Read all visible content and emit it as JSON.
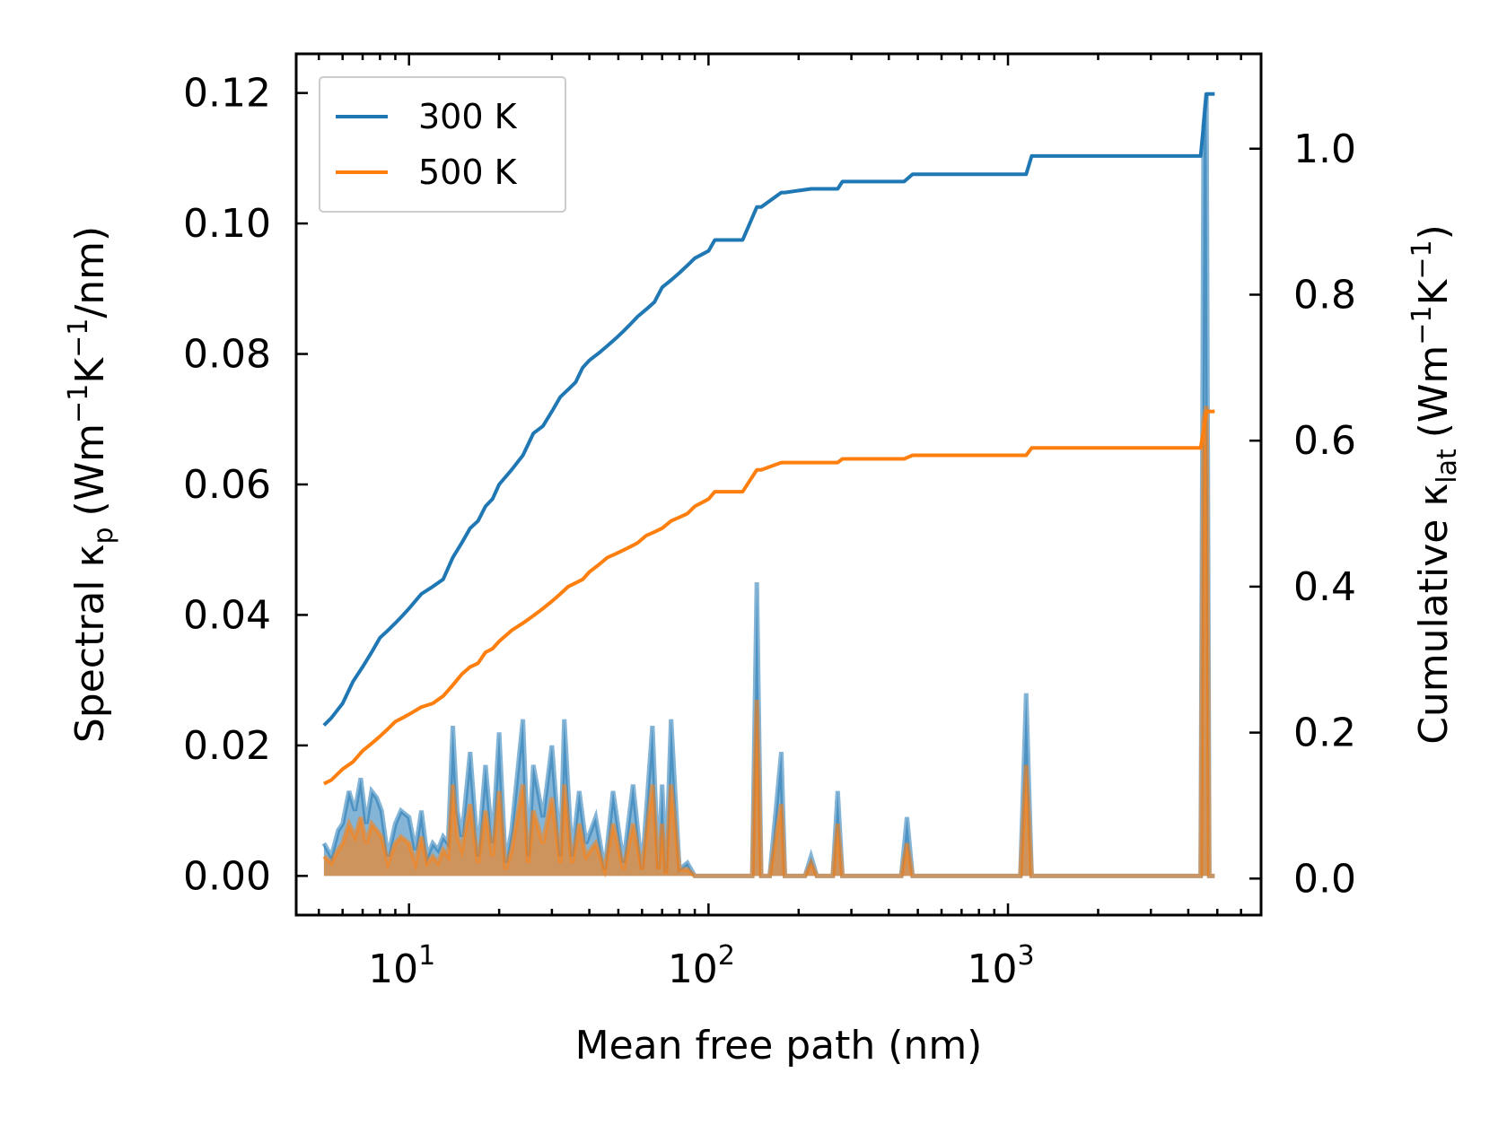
{
  "chart_data": {
    "type": "line",
    "xscale": "log",
    "xlabel": "Mean free path (nm)",
    "ylabel_left": {
      "base": "Spectral κ",
      "sub": "p",
      "unit_prefix": "(Wm",
      "exp1": "−1",
      "mid": "K",
      "exp2": "−1",
      "suffix": "/nm)"
    },
    "ylabel_right": {
      "base": "Cumulative κ",
      "sub": "lat",
      "unit_prefix": "(Wm",
      "exp1": "−1",
      "mid": "K",
      "exp2": "−1",
      "suffix": ")"
    },
    "xlim": [
      4.2,
      7000
    ],
    "ylim_left": [
      -0.006,
      0.126
    ],
    "ylim_right": [
      -0.05,
      1.13
    ],
    "x_ticks": [
      {
        "value": 10,
        "base": "10",
        "exp": "1"
      },
      {
        "value": 100,
        "base": "10",
        "exp": "2"
      },
      {
        "value": 1000,
        "base": "10",
        "exp": "3"
      }
    ],
    "y_ticks_left": [
      "0.00",
      "0.02",
      "0.04",
      "0.06",
      "0.08",
      "0.10",
      "0.12"
    ],
    "y_tick_values_left": [
      0,
      0.02,
      0.04,
      0.06,
      0.08,
      0.1,
      0.12
    ],
    "y_ticks_right": [
      "0.0",
      "0.2",
      "0.4",
      "0.6",
      "0.8",
      "1.0"
    ],
    "y_tick_values_right": [
      0,
      0.2,
      0.4,
      0.6,
      0.8,
      1.0
    ],
    "legend": {
      "position": "top-left",
      "entries": [
        "300 K",
        "500 K"
      ]
    },
    "series": [
      {
        "name": "300 K",
        "color": "#1f77b4",
        "cumulative": {
          "x": [
            5.2,
            5.5,
            6.0,
            6.5,
            7.0,
            7.5,
            8.0,
            8.5,
            9.0,
            9.5,
            10,
            11,
            12,
            13,
            14,
            15,
            16,
            17,
            18,
            19,
            20,
            22,
            24,
            26,
            28,
            30,
            32,
            34,
            36,
            38,
            40,
            43,
            46,
            49,
            52,
            55,
            58,
            62,
            66,
            70,
            75,
            80,
            85,
            90,
            95,
            100,
            105,
            110,
            130,
            145,
            150,
            175,
            180,
            220,
            230,
            270,
            280,
            290,
            450,
            480,
            500,
            1150,
            1200,
            1250,
            4400,
            4600,
            4800,
            4900
          ],
          "y": [
            0.21,
            0.22,
            0.24,
            0.27,
            0.29,
            0.31,
            0.33,
            0.34,
            0.35,
            0.36,
            0.37,
            0.39,
            0.4,
            0.41,
            0.44,
            0.46,
            0.48,
            0.49,
            0.51,
            0.52,
            0.54,
            0.56,
            0.58,
            0.61,
            0.62,
            0.64,
            0.66,
            0.67,
            0.68,
            0.7,
            0.71,
            0.72,
            0.73,
            0.74,
            0.75,
            0.76,
            0.77,
            0.78,
            0.79,
            0.81,
            0.82,
            0.83,
            0.84,
            0.85,
            0.855,
            0.86,
            0.875,
            0.875,
            0.875,
            0.92,
            0.92,
            0.94,
            0.94,
            0.945,
            0.945,
            0.945,
            0.955,
            0.955,
            0.955,
            0.965,
            0.965,
            0.965,
            0.99,
            0.99,
            0.99,
            1.075,
            1.075,
            1.075
          ]
        },
        "spectral": {
          "x": [
            5.2,
            5.5,
            5.8,
            6.0,
            6.3,
            6.6,
            6.9,
            7.2,
            7.5,
            7.8,
            8.1,
            8.5,
            9.0,
            9.4,
            10.0,
            10.5,
            11.0,
            11.5,
            12.0,
            12.5,
            13.0,
            13.5,
            14.0,
            14.5,
            15.0,
            16.0,
            17.0,
            18.0,
            19.0,
            20.0,
            21.0,
            22.0,
            24.0,
            25.0,
            26.0,
            28.0,
            30.0,
            32.0,
            33.0,
            35.0,
            37.0,
            39.0,
            42.0,
            45.0,
            48.0,
            52.0,
            56.0,
            60.0,
            65.0,
            68.0,
            70.0,
            72.0,
            75.0,
            80.0,
            85.0,
            90.0,
            95.0,
            100.0,
            105.0,
            110.0,
            130.0,
            140.0,
            145.0,
            150.0,
            160.0,
            175.0,
            180.0,
            190.0,
            210.0,
            220.0,
            230.0,
            260.0,
            270.0,
            280.0,
            300.0,
            440.0,
            460.0,
            480.0,
            500.0,
            1100.0,
            1150.0,
            1200.0,
            1250.0,
            1300.0,
            4400.0,
            4500.0,
            4600.0,
            4700.0,
            4800.0,
            4900.0
          ],
          "y": [
            0.005,
            0.003,
            0.007,
            0.008,
            0.013,
            0.01,
            0.015,
            0.008,
            0.013,
            0.012,
            0.01,
            0.003,
            0.008,
            0.01,
            0.009,
            0.004,
            0.01,
            0.003,
            0.005,
            0.004,
            0.006,
            0.005,
            0.023,
            0.01,
            0.006,
            0.019,
            0.003,
            0.017,
            0.005,
            0.022,
            0.002,
            0.007,
            0.024,
            0.003,
            0.017,
            0.009,
            0.02,
            0.003,
            0.024,
            0.003,
            0.013,
            0.005,
            0.009,
            0.001,
            0.013,
            0.002,
            0.014,
            0.001,
            0.023,
            0.001,
            0.014,
            0.0005,
            0.024,
            0.001,
            0.002,
            0.0,
            0.0,
            0.0,
            0.0,
            0.0,
            0.0,
            0.0,
            0.045,
            0.0,
            0.0,
            0.019,
            0.0,
            0.0,
            0.0,
            0.003,
            0.0,
            0.0,
            0.013,
            0.0,
            0.0,
            0.0,
            0.009,
            0.0,
            0.0,
            0.0,
            0.028,
            0.0,
            0.0,
            0.0,
            0.0,
            0.115,
            0.12,
            0.0,
            0.0,
            0.0
          ]
        }
      },
      {
        "name": "500 K",
        "color": "#ff7f0e",
        "cumulative": {
          "x": [
            5.2,
            5.5,
            6.0,
            6.5,
            7.0,
            7.5,
            8.0,
            8.5,
            9.0,
            9.5,
            10,
            11,
            12,
            13,
            14,
            15,
            16,
            17,
            18,
            19,
            20,
            22,
            24,
            26,
            28,
            30,
            32,
            34,
            36,
            38,
            40,
            43,
            46,
            49,
            52,
            55,
            58,
            62,
            66,
            70,
            75,
            80,
            85,
            90,
            95,
            100,
            105,
            110,
            130,
            145,
            150,
            175,
            180,
            220,
            230,
            270,
            280,
            290,
            450,
            480,
            500,
            1150,
            1200,
            1250,
            4400,
            4600,
            4800,
            4900
          ],
          "y": [
            0.13,
            0.135,
            0.15,
            0.16,
            0.175,
            0.185,
            0.195,
            0.205,
            0.215,
            0.22,
            0.225,
            0.235,
            0.24,
            0.25,
            0.265,
            0.28,
            0.29,
            0.295,
            0.31,
            0.315,
            0.325,
            0.34,
            0.35,
            0.36,
            0.37,
            0.38,
            0.39,
            0.4,
            0.405,
            0.41,
            0.42,
            0.43,
            0.44,
            0.445,
            0.45,
            0.455,
            0.46,
            0.47,
            0.475,
            0.48,
            0.49,
            0.495,
            0.5,
            0.51,
            0.515,
            0.52,
            0.53,
            0.53,
            0.53,
            0.56,
            0.56,
            0.57,
            0.57,
            0.57,
            0.57,
            0.57,
            0.575,
            0.575,
            0.575,
            0.58,
            0.58,
            0.58,
            0.59,
            0.59,
            0.59,
            0.64,
            0.64,
            0.64
          ]
        },
        "spectral": {
          "x": [
            5.2,
            5.5,
            5.8,
            6.0,
            6.3,
            6.6,
            6.9,
            7.2,
            7.5,
            7.8,
            8.1,
            8.5,
            9.0,
            9.4,
            10.0,
            10.5,
            11.0,
            11.5,
            12.0,
            12.5,
            13.0,
            13.5,
            14.0,
            14.5,
            15.0,
            16.0,
            17.0,
            18.0,
            19.0,
            20.0,
            21.0,
            22.0,
            24.0,
            25.0,
            26.0,
            28.0,
            30.0,
            32.0,
            33.0,
            35.0,
            37.0,
            39.0,
            42.0,
            45.0,
            48.0,
            52.0,
            56.0,
            60.0,
            65.0,
            68.0,
            70.0,
            72.0,
            75.0,
            80.0,
            85.0,
            90.0,
            95.0,
            100.0,
            105.0,
            110.0,
            130.0,
            140.0,
            145.0,
            150.0,
            160.0,
            175.0,
            180.0,
            190.0,
            210.0,
            220.0,
            230.0,
            260.0,
            270.0,
            280.0,
            300.0,
            440.0,
            460.0,
            480.0,
            500.0,
            1100.0,
            1150.0,
            1200.0,
            1250.0,
            1300.0,
            4400.0,
            4500.0,
            4600.0,
            4700.0,
            4800.0,
            4900.0
          ],
          "y": [
            0.003,
            0.002,
            0.004,
            0.005,
            0.008,
            0.006,
            0.009,
            0.005,
            0.008,
            0.007,
            0.006,
            0.002,
            0.005,
            0.006,
            0.005,
            0.002,
            0.006,
            0.002,
            0.003,
            0.002,
            0.004,
            0.003,
            0.014,
            0.006,
            0.004,
            0.011,
            0.002,
            0.01,
            0.003,
            0.013,
            0.001,
            0.004,
            0.014,
            0.002,
            0.01,
            0.005,
            0.012,
            0.002,
            0.014,
            0.002,
            0.008,
            0.003,
            0.005,
            0.001,
            0.008,
            0.001,
            0.008,
            0.001,
            0.014,
            0.001,
            0.008,
            0.0003,
            0.014,
            0.001,
            0.001,
            0.0,
            0.0,
            0.0,
            0.0,
            0.0,
            0.0,
            0.0,
            0.027,
            0.0,
            0.0,
            0.011,
            0.0,
            0.0,
            0.0,
            0.002,
            0.0,
            0.0,
            0.008,
            0.0,
            0.0,
            0.0,
            0.005,
            0.0,
            0.0,
            0.0,
            0.017,
            0.0,
            0.0,
            0.0,
            0.0,
            0.07,
            0.072,
            0.0,
            0.0,
            0.0
          ]
        }
      }
    ]
  }
}
